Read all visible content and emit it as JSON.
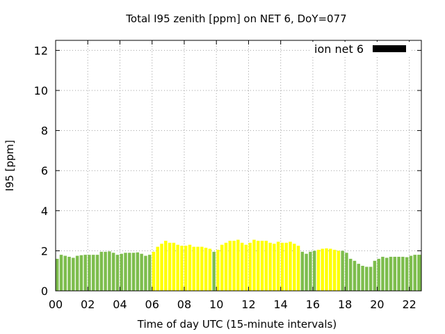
{
  "chart_data": {
    "type": "bar",
    "title": "Total I95 zenith [ppm] on NET 6, DoY=077",
    "xlabel": "Time of day UTC (15-minute intervals)",
    "ylabel": "I95 [ppm]",
    "xlim": [
      0,
      22.75
    ],
    "ylim": [
      0,
      12.5
    ],
    "x_ticks": [
      "00",
      "02",
      "04",
      "06",
      "08",
      "10",
      "12",
      "14",
      "16",
      "18",
      "20",
      "22"
    ],
    "y_ticks": [
      "0",
      "2",
      "4",
      "6",
      "8",
      "10",
      "12"
    ],
    "grid": true,
    "legend": {
      "label": "ion net 6",
      "position": "top-right",
      "color": "#000000"
    },
    "colors": {
      "green": "#7dbd4d",
      "yellow": "#ffff00"
    },
    "series": [
      {
        "name": "ion net 6",
        "bin_hours": 0.25,
        "start_hour": 0,
        "values": [
          1.6,
          1.8,
          1.75,
          1.7,
          1.65,
          1.75,
          1.78,
          1.8,
          1.8,
          1.8,
          1.8,
          1.95,
          1.95,
          1.97,
          1.9,
          1.8,
          1.85,
          1.9,
          1.9,
          1.9,
          1.92,
          1.85,
          1.75,
          1.8,
          1.95,
          2.2,
          2.35,
          2.5,
          2.4,
          2.4,
          2.3,
          2.25,
          2.25,
          2.3,
          2.2,
          2.2,
          2.2,
          2.15,
          2.1,
          1.95,
          2.05,
          2.3,
          2.4,
          2.5,
          2.5,
          2.55,
          2.4,
          2.3,
          2.4,
          2.55,
          2.5,
          2.5,
          2.5,
          2.4,
          2.35,
          2.45,
          2.4,
          2.4,
          2.45,
          2.35,
          2.25,
          1.95,
          1.85,
          1.95,
          2.0,
          2.05,
          2.1,
          2.12,
          2.1,
          2.05,
          2.0,
          2.0,
          1.9,
          1.6,
          1.5,
          1.35,
          1.25,
          1.2,
          1.2,
          1.5,
          1.6,
          1.7,
          1.65,
          1.7,
          1.7,
          1.7,
          1.7,
          1.68,
          1.75,
          1.8,
          1.8,
          1.8
        ],
        "colors": [
          "green",
          "green",
          "green",
          "green",
          "green",
          "green",
          "green",
          "green",
          "green",
          "green",
          "green",
          "green",
          "green",
          "green",
          "green",
          "green",
          "green",
          "green",
          "green",
          "green",
          "green",
          "green",
          "green",
          "green",
          "yellow",
          "yellow",
          "yellow",
          "yellow",
          "yellow",
          "yellow",
          "yellow",
          "yellow",
          "yellow",
          "yellow",
          "yellow",
          "yellow",
          "yellow",
          "yellow",
          "yellow",
          "green",
          "yellow",
          "yellow",
          "yellow",
          "yellow",
          "yellow",
          "yellow",
          "yellow",
          "yellow",
          "yellow",
          "yellow",
          "yellow",
          "yellow",
          "yellow",
          "yellow",
          "yellow",
          "yellow",
          "yellow",
          "yellow",
          "yellow",
          "yellow",
          "yellow",
          "green",
          "green",
          "green",
          "green",
          "yellow",
          "yellow",
          "yellow",
          "yellow",
          "yellow",
          "yellow",
          "green",
          "green",
          "green",
          "green",
          "green",
          "green",
          "green",
          "green",
          "green",
          "green",
          "green",
          "green",
          "green",
          "green",
          "green",
          "green",
          "green",
          "green",
          "green",
          "green",
          "green"
        ]
      }
    ]
  }
}
